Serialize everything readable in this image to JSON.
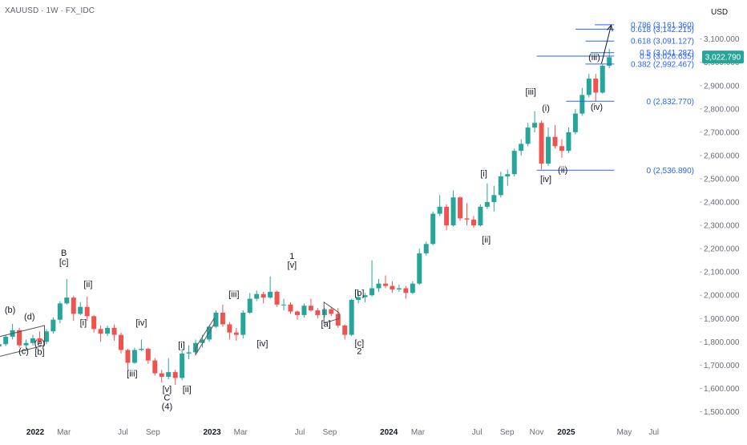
{
  "header": {
    "symbol_title": "XAUUSD · 1W · FX_IDC",
    "currency": "USD"
  },
  "colors": {
    "up": "#26a69a",
    "down": "#ef5350",
    "fib_line": "#2962ff",
    "fib_text": "#2962ff",
    "axis_text": "#6a6d78",
    "price_badge_bg": "#26a69a",
    "price_badge_text": "#ffffff",
    "annotation": "#131722",
    "triangle": "#555555"
  },
  "chart_data": {
    "type": "candlestick",
    "instrument": "XAUUSD",
    "timeframe": "1W",
    "source": "FX_IDC",
    "currency": "USD",
    "last_price": "3,022.790",
    "y_range": [
      1450,
      3240
    ],
    "price_ticks": [
      "3,100.000",
      "3,000.000",
      "2,900.000",
      "2,800.000",
      "2,700.000",
      "2,600.000",
      "2,500.000",
      "2,400.000",
      "2,300.000",
      "2,200.000",
      "2,100.000",
      "2,000.000",
      "1,900.000",
      "1,800.000",
      "1,700.000",
      "1,600.000",
      "1,500.000"
    ],
    "time_ticks": [
      {
        "label": "2022",
        "date": "2022-01-01",
        "bold": true
      },
      {
        "label": "Mar",
        "date": "2022-03-01",
        "bold": false
      },
      {
        "label": "Jul",
        "date": "2022-07-01",
        "bold": false
      },
      {
        "label": "Sep",
        "date": "2022-09-01",
        "bold": false
      },
      {
        "label": "2023",
        "date": "2023-01-01",
        "bold": true
      },
      {
        "label": "Mar",
        "date": "2023-03-01",
        "bold": false
      },
      {
        "label": "Jul",
        "date": "2023-07-01",
        "bold": false
      },
      {
        "label": "Sep",
        "date": "2023-09-01",
        "bold": false
      },
      {
        "label": "2024",
        "date": "2024-01-01",
        "bold": true
      },
      {
        "label": "Mar",
        "date": "2024-03-01",
        "bold": false
      },
      {
        "label": "Jul",
        "date": "2024-07-01",
        "bold": false
      },
      {
        "label": "Sep",
        "date": "2024-09-01",
        "bold": false
      },
      {
        "label": "Nov",
        "date": "2024-11-01",
        "bold": false
      },
      {
        "label": "2025",
        "date": "2025-01-01",
        "bold": true
      },
      {
        "label": "May",
        "date": "2025-05-01",
        "bold": false
      },
      {
        "label": "Jul",
        "date": "2025-07-01",
        "bold": false
      }
    ],
    "fib_levels": [
      {
        "label": "0.786 (3,161.360)",
        "price": 3161.36,
        "from": "2025-03-01",
        "to": "2025-04-10"
      },
      {
        "label": "0.618 (3,142.215)",
        "price": 3142.215,
        "from": "2025-01-20",
        "to": "2025-04-10"
      },
      {
        "label": "0.618 (3,091.127)",
        "price": 3091.127,
        "from": "2025-02-10",
        "to": "2025-04-10"
      },
      {
        "label": "0.5 (3,041.287)",
        "price": 3041.287,
        "from": "2025-02-20",
        "to": "2025-04-10"
      },
      {
        "label": "0.5 (3,026.635)",
        "price": 3026.635,
        "from": "2024-11-01",
        "to": "2025-04-10"
      },
      {
        "label": "0.382 (2,992.467)",
        "price": 2992.467,
        "from": "2025-02-10",
        "to": "2025-04-10"
      },
      {
        "label": "0 (2,832.770)",
        "price": 2832.77,
        "from": "2025-01-01",
        "to": "2025-04-10"
      },
      {
        "label": "0 (2,536.890)",
        "price": 2536.89,
        "from": "2024-11-01",
        "to": "2025-04-10"
      }
    ],
    "arrow": {
      "from_date": "2025-03-15",
      "from_price": 2995,
      "to_date": "2025-04-04",
      "to_price": 3160
    },
    "triangles": [
      {
        "name": "triangle-2021",
        "a": [
          "2021-09-15",
          1805
        ],
        "b": [
          "2022-01-20",
          1870
        ],
        "c": [
          "2022-01-20",
          1785
        ],
        "d": [
          "2021-09-15",
          1720
        ]
      },
      {
        "name": "triangle-2023a",
        "a": [
          "2022-11-28",
          1775
        ],
        "b": [
          "2023-01-05",
          1900
        ],
        "c": [
          "2023-01-05",
          1875
        ],
        "d": [
          "2022-11-28",
          1745
        ]
      },
      {
        "name": "triangle-2023b",
        "a": [
          "2023-08-20",
          1970
        ],
        "b": [
          "2023-09-20",
          1925
        ],
        "c": [
          "2023-09-20",
          1900
        ],
        "d": [
          "2023-08-20",
          1880
        ]
      }
    ],
    "wave_labels": [
      {
        "text": "(b)",
        "date": "2021-11-10",
        "price": 1925
      },
      {
        "text": "(d)",
        "date": "2021-12-20",
        "price": 1895
      },
      {
        "text": "(c)",
        "date": "2021-12-08",
        "price": 1747
      },
      {
        "text": "(e)",
        "date": "2022-01-10",
        "price": 1782
      },
      {
        "text": "[b]",
        "date": "2022-01-10",
        "price": 1745
      },
      {
        "text": "B",
        "date": "2022-03-01",
        "price": 2170
      },
      {
        "text": "[c]",
        "date": "2022-03-01",
        "price": 2130
      },
      {
        "text": "[ii]",
        "date": "2022-04-20",
        "price": 2035
      },
      {
        "text": "[i]",
        "date": "2022-04-10",
        "price": 1870
      },
      {
        "text": "[iv]",
        "date": "2022-08-08",
        "price": 1870
      },
      {
        "text": "[iii]",
        "date": "2022-07-20",
        "price": 1651
      },
      {
        "text": "[i]",
        "date": "2022-10-30",
        "price": 1773
      },
      {
        "text": "[v]",
        "date": "2022-09-30",
        "price": 1585
      },
      {
        "text": "C",
        "date": "2022-09-30",
        "price": 1548
      },
      {
        "text": "(4)",
        "date": "2022-09-30",
        "price": 1510
      },
      {
        "text": "[ii]",
        "date": "2022-11-10",
        "price": 1585
      },
      {
        "text": "[iii]",
        "date": "2023-02-15",
        "price": 1993
      },
      {
        "text": "[iv]",
        "date": "2023-04-15",
        "price": 1780
      },
      {
        "text": "1",
        "date": "2023-06-15",
        "price": 2155
      },
      {
        "text": "[v]",
        "date": "2023-06-15",
        "price": 2117
      },
      {
        "text": "[a]",
        "date": "2023-08-24",
        "price": 1865
      },
      {
        "text": "[b]",
        "date": "2023-11-01",
        "price": 1997
      },
      {
        "text": "[c]",
        "date": "2023-11-01",
        "price": 1783
      },
      {
        "text": "2",
        "date": "2023-11-01",
        "price": 1747
      },
      {
        "text": "[i]",
        "date": "2024-07-15",
        "price": 2510
      },
      {
        "text": "[ii]",
        "date": "2024-07-20",
        "price": 2226
      },
      {
        "text": "[iii]",
        "date": "2024-10-20",
        "price": 2862
      },
      {
        "text": "(i)",
        "date": "2024-11-20",
        "price": 2790
      },
      {
        "text": "[iv]",
        "date": "2024-11-20",
        "price": 2486
      },
      {
        "text": "(ii)",
        "date": "2024-12-25",
        "price": 2525
      },
      {
        "text": "(iii)",
        "date": "2025-02-28",
        "price": 3010
      },
      {
        "text": "(iv)",
        "date": "2025-03-05",
        "price": 2796
      }
    ],
    "candles": [
      {
        "date": "2021-09-06",
        "o": 1795,
        "h": 1815,
        "c": 1770,
        "l": 1762
      },
      {
        "date": "2021-09-20",
        "o": 1770,
        "h": 1790,
        "c": 1755,
        "l": 1745
      },
      {
        "date": "2021-10-04",
        "o": 1756,
        "h": 1785,
        "c": 1780,
        "l": 1748
      },
      {
        "date": "2021-10-18",
        "o": 1780,
        "h": 1810,
        "c": 1790,
        "l": 1770
      },
      {
        "date": "2021-11-01",
        "o": 1790,
        "h": 1830,
        "c": 1822,
        "l": 1782
      },
      {
        "date": "2021-11-15",
        "o": 1822,
        "h": 1877,
        "c": 1850,
        "l": 1810
      },
      {
        "date": "2021-11-29",
        "o": 1850,
        "h": 1860,
        "c": 1785,
        "l": 1775
      },
      {
        "date": "2021-12-13",
        "o": 1785,
        "h": 1810,
        "c": 1795,
        "l": 1760
      },
      {
        "date": "2021-12-27",
        "o": 1795,
        "h": 1830,
        "c": 1815,
        "l": 1785
      },
      {
        "date": "2022-01-10",
        "o": 1815,
        "h": 1845,
        "c": 1800,
        "l": 1792
      },
      {
        "date": "2022-01-24",
        "o": 1800,
        "h": 1855,
        "c": 1845,
        "l": 1790
      },
      {
        "date": "2022-02-07",
        "o": 1845,
        "h": 1905,
        "c": 1895,
        "l": 1835
      },
      {
        "date": "2022-02-21",
        "o": 1895,
        "h": 1975,
        "c": 1965,
        "l": 1880
      },
      {
        "date": "2022-03-07",
        "o": 1965,
        "h": 2070,
        "c": 1990,
        "l": 1960
      },
      {
        "date": "2022-03-21",
        "o": 1990,
        "h": 1998,
        "c": 1920,
        "l": 1890
      },
      {
        "date": "2022-04-04",
        "o": 1920,
        "h": 1970,
        "c": 1950,
        "l": 1915
      },
      {
        "date": "2022-04-18",
        "o": 1950,
        "h": 1995,
        "c": 1910,
        "l": 1890
      },
      {
        "date": "2022-05-02",
        "o": 1910,
        "h": 1915,
        "c": 1855,
        "l": 1840
      },
      {
        "date": "2022-05-16",
        "o": 1855,
        "h": 1870,
        "c": 1835,
        "l": 1800
      },
      {
        "date": "2022-05-30",
        "o": 1835,
        "h": 1870,
        "c": 1860,
        "l": 1825
      },
      {
        "date": "2022-06-13",
        "o": 1860,
        "h": 1875,
        "c": 1830,
        "l": 1805
      },
      {
        "date": "2022-06-27",
        "o": 1830,
        "h": 1840,
        "c": 1765,
        "l": 1750
      },
      {
        "date": "2022-07-11",
        "o": 1765,
        "h": 1770,
        "c": 1710,
        "l": 1680
      },
      {
        "date": "2022-07-25",
        "o": 1710,
        "h": 1775,
        "c": 1765,
        "l": 1705
      },
      {
        "date": "2022-08-08",
        "o": 1765,
        "h": 1810,
        "c": 1770,
        "l": 1760
      },
      {
        "date": "2022-08-22",
        "o": 1770,
        "h": 1775,
        "c": 1720,
        "l": 1705
      },
      {
        "date": "2022-09-05",
        "o": 1720,
        "h": 1730,
        "c": 1665,
        "l": 1655
      },
      {
        "date": "2022-09-19",
        "o": 1665,
        "h": 1680,
        "c": 1650,
        "l": 1625
      },
      {
        "date": "2022-10-03",
        "o": 1650,
        "h": 1730,
        "c": 1670,
        "l": 1640
      },
      {
        "date": "2022-10-17",
        "o": 1670,
        "h": 1680,
        "c": 1645,
        "l": 1615
      },
      {
        "date": "2022-10-31",
        "o": 1645,
        "h": 1770,
        "c": 1750,
        "l": 1635
      },
      {
        "date": "2022-11-14",
        "o": 1750,
        "h": 1785,
        "c": 1755,
        "l": 1725
      },
      {
        "date": "2022-11-28",
        "o": 1755,
        "h": 1810,
        "c": 1795,
        "l": 1745
      },
      {
        "date": "2022-12-12",
        "o": 1795,
        "h": 1830,
        "c": 1810,
        "l": 1775
      },
      {
        "date": "2022-12-26",
        "o": 1810,
        "h": 1870,
        "c": 1865,
        "l": 1800
      },
      {
        "date": "2023-01-09",
        "o": 1865,
        "h": 1935,
        "c": 1925,
        "l": 1860
      },
      {
        "date": "2023-01-23",
        "o": 1925,
        "h": 1960,
        "c": 1875,
        "l": 1865
      },
      {
        "date": "2023-02-06",
        "o": 1875,
        "h": 1885,
        "c": 1840,
        "l": 1810
      },
      {
        "date": "2023-02-20",
        "o": 1840,
        "h": 1860,
        "c": 1830,
        "l": 1805
      },
      {
        "date": "2023-03-06",
        "o": 1830,
        "h": 1935,
        "c": 1925,
        "l": 1815
      },
      {
        "date": "2023-03-20",
        "o": 1925,
        "h": 2010,
        "c": 1985,
        "l": 1920
      },
      {
        "date": "2023-04-03",
        "o": 1985,
        "h": 2020,
        "c": 2005,
        "l": 1975
      },
      {
        "date": "2023-04-17",
        "o": 2005,
        "h": 2015,
        "c": 1990,
        "l": 1965
      },
      {
        "date": "2023-05-01",
        "o": 1990,
        "h": 2080,
        "c": 2015,
        "l": 1985
      },
      {
        "date": "2023-05-15",
        "o": 2015,
        "h": 2020,
        "c": 1960,
        "l": 1950
      },
      {
        "date": "2023-05-29",
        "o": 1960,
        "h": 1985,
        "c": 1960,
        "l": 1935
      },
      {
        "date": "2023-06-12",
        "o": 1960,
        "h": 1970,
        "c": 1930,
        "l": 1920
      },
      {
        "date": "2023-06-26",
        "o": 1930,
        "h": 1935,
        "c": 1915,
        "l": 1895
      },
      {
        "date": "2023-07-10",
        "o": 1915,
        "h": 1965,
        "c": 1955,
        "l": 1905
      },
      {
        "date": "2023-07-24",
        "o": 1955,
        "h": 1985,
        "c": 1935,
        "l": 1930
      },
      {
        "date": "2023-08-07",
        "o": 1935,
        "h": 1945,
        "c": 1915,
        "l": 1900
      },
      {
        "date": "2023-08-21",
        "o": 1915,
        "h": 1945,
        "c": 1940,
        "l": 1905
      },
      {
        "date": "2023-09-04",
        "o": 1940,
        "h": 1950,
        "c": 1920,
        "l": 1910
      },
      {
        "date": "2023-09-18",
        "o": 1920,
        "h": 1945,
        "c": 1870,
        "l": 1860
      },
      {
        "date": "2023-10-02",
        "o": 1870,
        "h": 1875,
        "c": 1830,
        "l": 1810
      },
      {
        "date": "2023-10-16",
        "o": 1830,
        "h": 1985,
        "c": 1980,
        "l": 1825
      },
      {
        "date": "2023-10-30",
        "o": 1980,
        "h": 2010,
        "c": 1992,
        "l": 1965
      },
      {
        "date": "2023-11-13",
        "o": 1992,
        "h": 2010,
        "c": 2000,
        "l": 1970
      },
      {
        "date": "2023-11-27",
        "o": 2000,
        "h": 2150,
        "c": 2030,
        "l": 1995
      },
      {
        "date": "2023-12-11",
        "o": 2030,
        "h": 2070,
        "c": 2050,
        "l": 2015
      },
      {
        "date": "2023-12-25",
        "o": 2050,
        "h": 2085,
        "c": 2040,
        "l": 2030
      },
      {
        "date": "2024-01-08",
        "o": 2040,
        "h": 2060,
        "c": 2025,
        "l": 2010
      },
      {
        "date": "2024-01-22",
        "o": 2025,
        "h": 2045,
        "c": 2030,
        "l": 2015
      },
      {
        "date": "2024-02-05",
        "o": 2030,
        "h": 2040,
        "c": 2010,
        "l": 1985
      },
      {
        "date": "2024-02-19",
        "o": 2010,
        "h": 2060,
        "c": 2050,
        "l": 2005
      },
      {
        "date": "2024-03-04",
        "o": 2050,
        "h": 2200,
        "c": 2180,
        "l": 2045
      },
      {
        "date": "2024-03-18",
        "o": 2180,
        "h": 2230,
        "c": 2220,
        "l": 2170
      },
      {
        "date": "2024-04-01",
        "o": 2220,
        "h": 2360,
        "c": 2350,
        "l": 2215
      },
      {
        "date": "2024-04-15",
        "o": 2350,
        "h": 2430,
        "c": 2380,
        "l": 2340
      },
      {
        "date": "2024-04-29",
        "o": 2380,
        "h": 2390,
        "c": 2300,
        "l": 2280
      },
      {
        "date": "2024-05-13",
        "o": 2300,
        "h": 2450,
        "c": 2420,
        "l": 2295
      },
      {
        "date": "2024-05-27",
        "o": 2420,
        "h": 2425,
        "c": 2330,
        "l": 2320
      },
      {
        "date": "2024-06-10",
        "o": 2330,
        "h": 2395,
        "c": 2325,
        "l": 2300
      },
      {
        "date": "2024-06-24",
        "o": 2325,
        "h": 2340,
        "c": 2300,
        "l": 2290
      },
      {
        "date": "2024-07-08",
        "o": 2300,
        "h": 2390,
        "c": 2380,
        "l": 2295
      },
      {
        "date": "2024-07-22",
        "o": 2380,
        "h": 2480,
        "c": 2400,
        "l": 2370
      },
      {
        "date": "2024-08-05",
        "o": 2400,
        "h": 2470,
        "c": 2430,
        "l": 2360
      },
      {
        "date": "2024-08-19",
        "o": 2430,
        "h": 2530,
        "c": 2510,
        "l": 2420
      },
      {
        "date": "2024-09-02",
        "o": 2510,
        "h": 2540,
        "c": 2520,
        "l": 2470
      },
      {
        "date": "2024-09-16",
        "o": 2520,
        "h": 2630,
        "c": 2620,
        "l": 2510
      },
      {
        "date": "2024-09-30",
        "o": 2620,
        "h": 2670,
        "c": 2650,
        "l": 2600
      },
      {
        "date": "2024-10-14",
        "o": 2650,
        "h": 2740,
        "c": 2720,
        "l": 2640
      },
      {
        "date": "2024-10-28",
        "o": 2720,
        "h": 2790,
        "c": 2740,
        "l": 2700
      },
      {
        "date": "2024-11-11",
        "o": 2740,
        "h": 2750,
        "c": 2565,
        "l": 2540
      },
      {
        "date": "2024-11-25",
        "o": 2565,
        "h": 2720,
        "c": 2680,
        "l": 2555
      },
      {
        "date": "2024-12-09",
        "o": 2680,
        "h": 2730,
        "c": 2640,
        "l": 2630
      },
      {
        "date": "2024-12-23",
        "o": 2640,
        "h": 2670,
        "c": 2620,
        "l": 2590
      },
      {
        "date": "2025-01-06",
        "o": 2620,
        "h": 2720,
        "c": 2700,
        "l": 2610
      },
      {
        "date": "2025-01-20",
        "o": 2700,
        "h": 2800,
        "c": 2780,
        "l": 2690
      },
      {
        "date": "2025-02-03",
        "o": 2780,
        "h": 2890,
        "c": 2860,
        "l": 2770
      },
      {
        "date": "2025-02-17",
        "o": 2860,
        "h": 2950,
        "c": 2930,
        "l": 2850
      },
      {
        "date": "2025-03-03",
        "o": 2930,
        "h": 2950,
        "c": 2870,
        "l": 2832
      },
      {
        "date": "2025-03-17",
        "o": 2870,
        "h": 2990,
        "c": 2985,
        "l": 2865
      },
      {
        "date": "2025-03-31",
        "o": 2985,
        "h": 3057,
        "c": 3022,
        "l": 2975
      }
    ]
  }
}
